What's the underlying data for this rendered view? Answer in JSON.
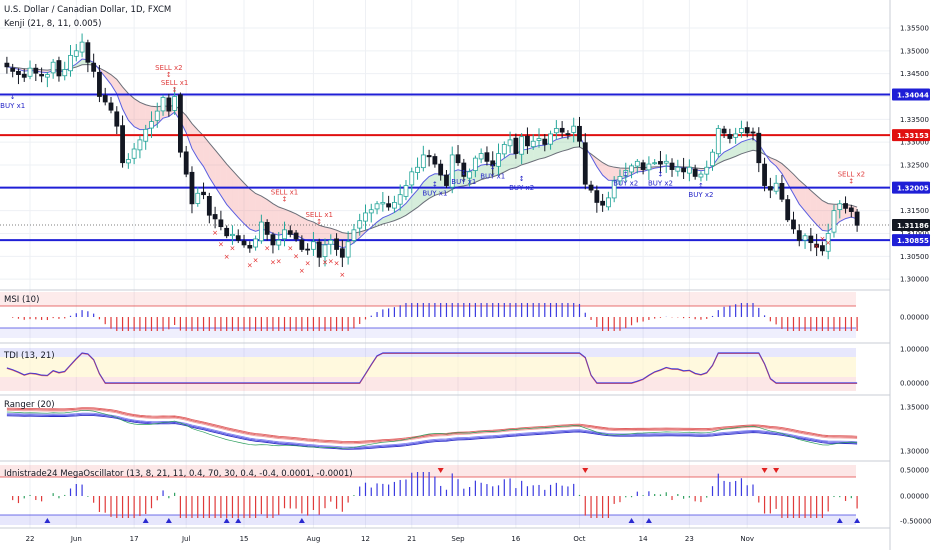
{
  "header": {
    "title": "U.S. Dollar / Canadian Dollar, 1D, FXCM",
    "indicator": "Kenji (21, 8, 11, 0.005)"
  },
  "colors": {
    "up": "#26a69a",
    "down": "#131722",
    "blue_line": "#1f1fd6",
    "red_line": "#e01010",
    "badge_blue": "#2929d4",
    "badge_red": "#e01010",
    "buy": "#2626c8",
    "sell": "#e04040"
  },
  "chart_data": [
    {
      "type": "candlestick",
      "title": "U.S. Dollar / Canadian Dollar, 1D, FXCM",
      "price_ticks": [
        "1.35500",
        "1.35000",
        "1.34500",
        "1.34000",
        "1.33500",
        "1.33000",
        "1.32500",
        "1.32000",
        "1.31500",
        "1.31000",
        "1.30500",
        "1.30000"
      ],
      "ylim": [
        1.2985,
        1.3585
      ],
      "horizontal_levels": [
        {
          "value": 1.34044,
          "label": "1.34044",
          "color": "#1f1fd6"
        },
        {
          "value": 1.33153,
          "label": "1.33153",
          "color": "#e01010"
        },
        {
          "value": 1.32005,
          "label": "1.32005",
          "color": "#1f1fd6"
        },
        {
          "value": 1.30855,
          "label": "1.30855",
          "color": "#1f1fd6"
        }
      ],
      "last_price": {
        "value": 1.31186,
        "label": "1.31186"
      },
      "x_labels": [
        "22",
        "Jun",
        "17",
        "Jul",
        "15",
        "Aug",
        "12",
        "21",
        "Sep",
        "16",
        "Oct",
        "14",
        "23",
        "Nov"
      ],
      "close": [
        1.3465,
        1.3455,
        1.3448,
        1.3442,
        1.3462,
        1.3451,
        1.3445,
        1.3448,
        1.3475,
        1.3445,
        1.3459,
        1.349,
        1.35,
        1.3519,
        1.3475,
        1.3455,
        1.34,
        1.3388,
        1.337,
        1.3335,
        1.3255,
        1.3262,
        1.3285,
        1.3305,
        1.3328,
        1.3345,
        1.3368,
        1.3398,
        1.3368,
        1.34,
        1.3278,
        1.323,
        1.3165,
        1.3188,
        1.3185,
        1.314,
        1.3132,
        1.3115,
        1.3095,
        1.3098,
        1.3085,
        1.3075,
        1.3068,
        1.3088,
        1.3125,
        1.3098,
        1.3075,
        1.3085,
        1.3108,
        1.3098,
        1.3088,
        1.3065,
        1.3065,
        1.3082,
        1.3048,
        1.3075,
        1.3085,
        1.3065,
        1.3048,
        1.3082,
        1.3108,
        1.3128,
        1.3145,
        1.3152,
        1.3165,
        1.3168,
        1.3158,
        1.3168,
        1.3185,
        1.3205,
        1.3235,
        1.3245,
        1.3272,
        1.3268,
        1.3252,
        1.3228,
        1.3205,
        1.3272,
        1.3255,
        1.3225,
        1.3235,
        1.3265,
        1.3275,
        1.3258,
        1.3248,
        1.3275,
        1.3295,
        1.3305,
        1.3275,
        1.3312,
        1.3292,
        1.3302,
        1.3308,
        1.3295,
        1.3318,
        1.333,
        1.3322,
        1.3318,
        1.3335,
        1.3302,
        1.3208,
        1.3195,
        1.3168,
        1.3162,
        1.3178,
        1.3215,
        1.3225,
        1.3238,
        1.3248,
        1.3258,
        1.324,
        1.3252,
        1.3255,
        1.3252,
        1.3258,
        1.324,
        1.3245,
        1.3235,
        1.3245,
        1.3225,
        1.323,
        1.3245,
        1.3278,
        1.333,
        1.332,
        1.3308,
        1.3318,
        1.333,
        1.332,
        1.332,
        1.3255,
        1.3205,
        1.3195,
        1.321,
        1.3175,
        1.313,
        1.311,
        1.3085,
        1.3095,
        1.308,
        1.307,
        1.3062,
        1.31,
        1.315,
        1.3165,
        1.3155,
        1.3148,
        1.3118
      ],
      "series": [
        {
          "name": "",
          "values": []
        }
      ],
      "signals": [
        {
          "text": "BUY x1",
          "kind": "buy",
          "bar": 1,
          "price": 1.3375
        },
        {
          "text": "SELL x2",
          "kind": "sell",
          "bar": 28,
          "price": 1.3458
        },
        {
          "text": "SELL x1",
          "kind": "sell",
          "bar": 29,
          "price": 1.3425
        },
        {
          "text": "SELL x1",
          "kind": "sell",
          "bar": 48,
          "price": 1.3185
        },
        {
          "text": "SELL x1",
          "kind": "sell",
          "bar": 54,
          "price": 1.3136
        },
        {
          "text": "BUY x1",
          "kind": "buy",
          "bar": 74,
          "price": 1.3183
        },
        {
          "text": "BUY x1",
          "kind": "buy",
          "bar": 79,
          "price": 1.3208
        },
        {
          "text": "BUY x1",
          "kind": "buy",
          "bar": 84,
          "price": 1.322
        },
        {
          "text": "BUY x2",
          "kind": "buy",
          "bar": 89,
          "price": 1.3195
        },
        {
          "text": "BUY x2",
          "kind": "buy",
          "bar": 107,
          "price": 1.3205
        },
        {
          "text": "BUY x2",
          "kind": "buy",
          "bar": 113,
          "price": 1.3205
        },
        {
          "text": "BUY x2",
          "kind": "buy",
          "bar": 120,
          "price": 1.318
        },
        {
          "text": "SELL x2",
          "kind": "sell",
          "bar": 146,
          "price": 1.3225
        }
      ]
    },
    {
      "type": "bar",
      "title": "MSI (10)",
      "ticks": [
        "0.00000"
      ]
    },
    {
      "type": "line",
      "title": "TDI (13, 21)",
      "ticks": [
        "1.00000",
        "0.00000"
      ]
    },
    {
      "type": "line",
      "title": "Ranger (20)",
      "ticks": [
        "1.35000",
        "1.30000"
      ]
    },
    {
      "type": "bar",
      "title": "Idnistrade24 MegaOscillator (13, 8, 21, 11, 0.4, 70, 30, 0.4, -0.4, 0.0001, -0.0001)",
      "ticks": [
        "0.50000",
        "0.00000",
        "-0.50000"
      ]
    }
  ]
}
